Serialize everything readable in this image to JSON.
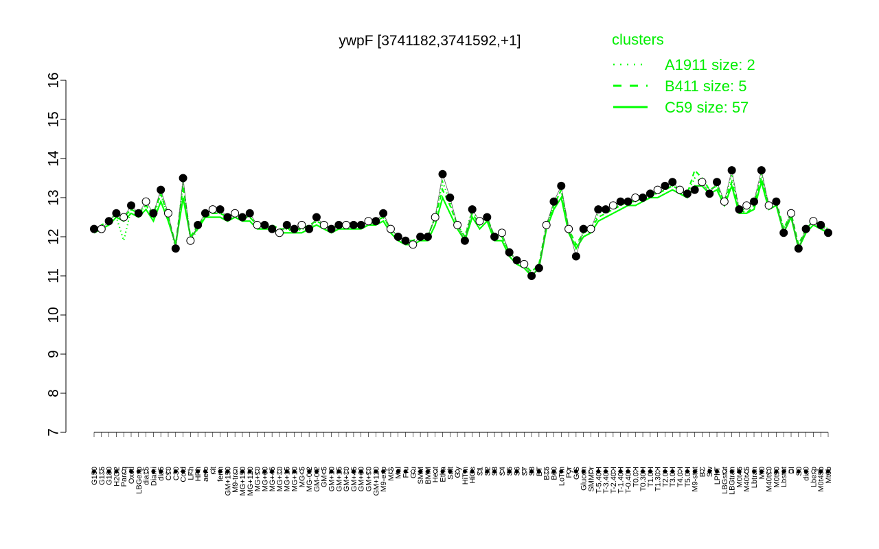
{
  "chart_data": {
    "type": "line",
    "title": "ywpF [3741182,3741592,+1]",
    "xlabel": "",
    "ylabel": "",
    "ylim": [
      7,
      16
    ],
    "y_ticks": [
      "7",
      "8",
      "9",
      "10",
      "11",
      "12",
      "13",
      "14",
      "15",
      "16"
    ],
    "x_tick_labels": [
      "G150",
      "G135",
      "G180",
      "H2O2",
      "Paraq",
      "Oxctl",
      "LBGexp",
      "dia15",
      "Diami",
      "dia5",
      "C90",
      "C30",
      "Cold",
      "LPh",
      "HPh",
      "aero",
      "nit",
      "ferm",
      "GM+150",
      "M9-tran",
      "MG+150",
      "MG+120",
      "MG+90",
      "MG+60",
      "MG+45",
      "MG+30",
      "MG+15",
      "MG+10",
      "MG+5",
      "MG-0.2",
      "GM-0.2",
      "GM+5",
      "GM+10",
      "GM+15",
      "GM+30",
      "GM+45",
      "GM+60",
      "GM+90",
      "GM+120",
      "M9-exp",
      "M/G",
      "Mal",
      "Fru",
      "Glu",
      "SMM",
      "BMM",
      "Heat",
      "Etha",
      "Salt",
      "Gly",
      "HiTm",
      "HiOs",
      "S1",
      "S2",
      "S3",
      "S4",
      "S5",
      "S6",
      "S7",
      "S8",
      "BT",
      "B36",
      "B60",
      "LoTm",
      "Pyr",
      "G/S",
      "Glucon",
      "SMMPr",
      "T-5.40H",
      "T-3.40H",
      "T-2.40H",
      "T-1.40H",
      "T-0.40H",
      "T0.0H",
      "T0.30H",
      "T1.0H",
      "T1.30H",
      "T2.0H",
      "T3.0H",
      "T4.0H",
      "T5.0H",
      "M9-stat",
      "BC",
      "Sw",
      "LPhT",
      "LBGstat",
      "LBGtran",
      "M0t45",
      "M40t45",
      "Lbtran",
      "Mt0",
      "M40t90",
      "M0t90",
      "Lbstat",
      "BI",
      "S0",
      "dia0",
      "Lbexp",
      "M0t45b",
      "Mt0b"
    ],
    "series": [
      {
        "name": "A1911 size: 2",
        "style": "dotted",
        "values": [
          12.1,
          12.2,
          12.3,
          12.5,
          11.9,
          12.7,
          12.6,
          12.8,
          12.5,
          13.1,
          12.5,
          11.7,
          13.4,
          11.9,
          12.2,
          12.6,
          12.6,
          12.6,
          12.5,
          12.6,
          12.5,
          12.5,
          12.3,
          12.3,
          12.2,
          12.1,
          12.2,
          12.1,
          12.2,
          12.2,
          12.4,
          12.3,
          12.2,
          12.3,
          12.2,
          12.3,
          12.3,
          12.4,
          12.4,
          12.5,
          12.2,
          12.0,
          11.9,
          11.9,
          12.0,
          12.0,
          12.5,
          13.4,
          12.9,
          12.3,
          12.0,
          12.7,
          12.3,
          12.5,
          12.0,
          12.0,
          11.6,
          11.4,
          11.3,
          11.0,
          11.2,
          12.3,
          12.8,
          13.2,
          12.2,
          11.7,
          12.1,
          12.2,
          12.6,
          12.7,
          12.8,
          12.8,
          12.9,
          12.9,
          13.0,
          13.1,
          13.1,
          13.2,
          13.3,
          13.2,
          13.1,
          13.5,
          13.4,
          13.2,
          13.3,
          12.9,
          13.6,
          12.7,
          12.7,
          12.9,
          13.6,
          12.8,
          12.9,
          12.2,
          12.6,
          11.7,
          12.2,
          12.4,
          12.3,
          12.2
        ]
      },
      {
        "name": "B411 size: 5",
        "style": "dashed",
        "values": [
          12.1,
          12.3,
          12.4,
          12.6,
          12.5,
          12.7,
          12.6,
          12.8,
          12.6,
          13.1,
          12.5,
          11.8,
          13.3,
          12.0,
          12.3,
          12.5,
          12.6,
          12.6,
          12.5,
          12.6,
          12.5,
          12.5,
          12.3,
          12.3,
          12.3,
          12.2,
          12.2,
          12.2,
          12.2,
          12.3,
          12.4,
          12.3,
          12.2,
          12.3,
          12.3,
          12.3,
          12.3,
          12.4,
          12.4,
          12.5,
          12.2,
          12.0,
          11.9,
          11.9,
          12.0,
          12.0,
          12.5,
          13.2,
          12.8,
          12.3,
          12.0,
          12.6,
          12.3,
          12.5,
          12.0,
          12.0,
          11.6,
          11.4,
          11.3,
          11.1,
          11.3,
          12.3,
          12.8,
          13.2,
          12.2,
          11.8,
          12.1,
          12.2,
          12.5,
          12.6,
          12.7,
          12.8,
          12.9,
          12.9,
          13.0,
          13.1,
          13.1,
          13.2,
          13.3,
          13.2,
          13.1,
          13.7,
          13.5,
          13.2,
          13.3,
          12.9,
          13.4,
          12.7,
          12.6,
          12.8,
          13.5,
          12.8,
          12.9,
          12.2,
          12.6,
          11.8,
          12.2,
          12.4,
          12.3,
          12.2
        ]
      },
      {
        "name": "C59 size: 57",
        "style": "solid",
        "values": [
          12.1,
          12.2,
          12.3,
          12.5,
          12.4,
          12.6,
          12.5,
          12.7,
          12.4,
          12.9,
          12.4,
          11.8,
          13.0,
          12.0,
          12.2,
          12.5,
          12.5,
          12.5,
          12.4,
          12.5,
          12.4,
          12.4,
          12.2,
          12.2,
          12.2,
          12.1,
          12.1,
          12.1,
          12.1,
          12.2,
          12.3,
          12.2,
          12.1,
          12.2,
          12.2,
          12.2,
          12.2,
          12.3,
          12.3,
          12.4,
          12.1,
          11.9,
          11.8,
          11.8,
          11.9,
          11.9,
          12.3,
          13.0,
          12.6,
          12.2,
          11.9,
          12.5,
          12.2,
          12.4,
          11.9,
          11.9,
          11.5,
          11.3,
          11.2,
          11.0,
          11.2,
          12.2,
          12.7,
          13.0,
          12.1,
          11.7,
          12.0,
          12.1,
          12.4,
          12.5,
          12.6,
          12.7,
          12.8,
          12.8,
          12.9,
          13.0,
          13.0,
          13.1,
          13.2,
          13.1,
          13.0,
          13.3,
          13.3,
          13.1,
          13.2,
          12.8,
          13.3,
          12.6,
          12.6,
          12.7,
          13.4,
          12.7,
          12.8,
          12.1,
          12.5,
          11.7,
          12.1,
          12.3,
          12.2,
          12.1
        ]
      }
    ],
    "points": {
      "name": "observed",
      "values": [
        12.2,
        12.2,
        12.4,
        12.6,
        12.5,
        12.8,
        12.6,
        12.9,
        12.6,
        13.2,
        12.6,
        11.7,
        13.5,
        11.9,
        12.3,
        12.6,
        12.7,
        12.7,
        12.5,
        12.6,
        12.5,
        12.6,
        12.3,
        12.3,
        12.2,
        12.1,
        12.3,
        12.2,
        12.3,
        12.2,
        12.5,
        12.3,
        12.2,
        12.3,
        12.3,
        12.3,
        12.3,
        12.4,
        12.4,
        12.6,
        12.2,
        12.0,
        11.9,
        11.8,
        12.0,
        12.0,
        12.5,
        13.6,
        13.0,
        12.3,
        11.9,
        12.7,
        12.4,
        12.5,
        12.0,
        12.1,
        11.6,
        11.4,
        11.3,
        11.0,
        11.2,
        12.3,
        12.9,
        13.3,
        12.2,
        11.5,
        12.2,
        12.2,
        12.7,
        12.7,
        12.8,
        12.9,
        12.9,
        13.0,
        13.0,
        13.1,
        13.2,
        13.3,
        13.4,
        13.2,
        13.1,
        13.2,
        13.4,
        13.1,
        13.4,
        12.9,
        13.7,
        12.7,
        12.8,
        12.9,
        13.7,
        12.8,
        12.9,
        12.1,
        12.6,
        11.7,
        12.2,
        12.4,
        12.3,
        12.1
      ]
    },
    "legend": {
      "title": "clusters",
      "placement": "top-right",
      "entries": [
        "A1911 size: 2",
        "B411 size: 5",
        "C59 size: 57"
      ]
    },
    "grid": false,
    "colors": {
      "series": "#00ff00",
      "points": "#000000",
      "axes": "#000000"
    }
  }
}
